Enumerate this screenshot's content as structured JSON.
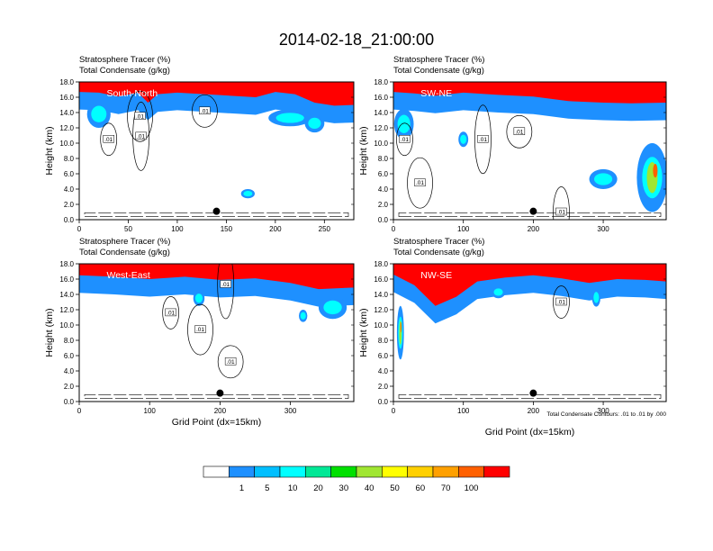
{
  "figure": {
    "title": "2014-02-18_21:00:00",
    "footnote": "Total Condensate Contours: .01 to .01 by .000",
    "colorbar": {
      "levels": [
        "1",
        "5",
        "10",
        "20",
        "30",
        "40",
        "50",
        "60",
        "70",
        "100"
      ],
      "colors": [
        "#ffffff",
        "#1e90ff",
        "#00bfff",
        "#00ffff",
        "#00e896",
        "#00e000",
        "#a0e632",
        "#ffff00",
        "#ffd000",
        "#ffa000",
        "#ff6000",
        "#ff0000"
      ]
    }
  },
  "chart_data": [
    {
      "type": "heatmap",
      "id": "p1",
      "label": "South-North",
      "line1": "Stratosphere Tracer   (%)",
      "line2": "Total Condensate   (g/kg)",
      "ylabel": "Height (km)",
      "xlabel": "",
      "xlim": [
        0,
        280
      ],
      "ylim": [
        0,
        18
      ],
      "x_ticks": [
        0,
        50,
        100,
        150,
        200,
        250
      ],
      "y_ticks": [
        "0.0",
        "2.0",
        "4.0",
        "6.0",
        "8.0",
        "10.0",
        "12.0",
        "14.0",
        "16.0",
        "18.0"
      ],
      "marker": [
        140,
        1.1
      ],
      "contour_level": ".01",
      "contour_label_positions": [
        [
          30,
          10.5
        ],
        [
          62,
          13.5
        ],
        [
          63,
          10.9
        ],
        [
          128,
          14.2
        ]
      ],
      "tracer_top_profile": [
        [
          0,
          16
        ],
        [
          20,
          15.9
        ],
        [
          40,
          15.4
        ],
        [
          60,
          15.9
        ],
        [
          70,
          14.6
        ],
        [
          80,
          15.7
        ],
        [
          100,
          15.9
        ],
        [
          140,
          15.6
        ],
        [
          180,
          15.3
        ],
        [
          200,
          16
        ],
        [
          220,
          15.7
        ],
        [
          240,
          14.6
        ],
        [
          260,
          14.2
        ],
        [
          280,
          14.3
        ]
      ],
      "tracer_blobs": [
        [
          20,
          13.8,
          12,
          1.8
        ],
        [
          215,
          13.3,
          22,
          1.1
        ],
        [
          240,
          12.6,
          10,
          1.2
        ],
        [
          172,
          3.4,
          7,
          0.6
        ]
      ]
    },
    {
      "type": "heatmap",
      "id": "p2",
      "label": "SW-NE",
      "line1": "Stratosphere Tracer   (%)",
      "line2": "Total Condensate   (g/kg)",
      "ylabel": "Height (km)",
      "xlabel": "",
      "xlim": [
        0,
        390
      ],
      "ylim": [
        0,
        18
      ],
      "x_ticks": [
        0,
        100,
        200,
        300
      ],
      "y_ticks": [
        "0.0",
        "2.0",
        "4.0",
        "6.0",
        "8.0",
        "10.0",
        "12.0",
        "14.0",
        "16.0",
        "18.0"
      ],
      "marker": [
        200,
        1.1
      ],
      "contour_level": ".01",
      "contour_label_positions": [
        [
          16,
          10.5
        ],
        [
          38,
          4.8
        ],
        [
          128,
          10.5
        ],
        [
          180,
          11.5
        ],
        [
          240,
          1.0
        ]
      ],
      "tracer_top_profile": [
        [
          0,
          16
        ],
        [
          30,
          15.8
        ],
        [
          60,
          15.5
        ],
        [
          100,
          15.9
        ],
        [
          150,
          15.6
        ],
        [
          200,
          15.4
        ],
        [
          250,
          14.8
        ],
        [
          300,
          14.6
        ],
        [
          340,
          14.5
        ],
        [
          390,
          14.6
        ]
      ],
      "tracer_blobs": [
        [
          15,
          12.5,
          14,
          2.0
        ],
        [
          370,
          5.5,
          22,
          4.5
        ],
        [
          300,
          5.3,
          20,
          1.3
        ],
        [
          100,
          10.5,
          7,
          1.0
        ]
      ]
    },
    {
      "type": "heatmap",
      "id": "p3",
      "label": "West-East",
      "line1": "Stratosphere Tracer   (%)",
      "line2": "Total Condensate   (g/kg)",
      "ylabel": "Height (km)",
      "xlabel": "Grid Point (dx=15km)",
      "xlim": [
        0,
        390
      ],
      "ylim": [
        0,
        18
      ],
      "x_ticks": [
        0,
        100,
        200,
        300
      ],
      "y_ticks": [
        "0.0",
        "2.0",
        "4.0",
        "6.0",
        "8.0",
        "10.0",
        "12.0",
        "14.0",
        "16.0",
        "18.0"
      ],
      "marker": [
        200,
        1.1
      ],
      "contour_level": ".01",
      "contour_label_positions": [
        [
          130,
          11.6
        ],
        [
          172,
          9.4
        ],
        [
          208,
          15.3
        ],
        [
          215,
          5.2
        ]
      ],
      "tracer_top_profile": [
        [
          0,
          15.8
        ],
        [
          50,
          15.6
        ],
        [
          100,
          15.3
        ],
        [
          150,
          15.6
        ],
        [
          200,
          15.2
        ],
        [
          250,
          15.4
        ],
        [
          300,
          14.8
        ],
        [
          340,
          14.0
        ],
        [
          390,
          14.2
        ]
      ],
      "tracer_blobs": [
        [
          360,
          12.3,
          20,
          1.5
        ],
        [
          318,
          11.2,
          6,
          0.8
        ],
        [
          170,
          13.5,
          8,
          1.0
        ]
      ]
    },
    {
      "type": "heatmap",
      "id": "p4",
      "label": "NW-SE",
      "line1": "Stratosphere Tracer   (%)",
      "line2": "Total Condensate   (g/kg)",
      "ylabel": "Height (km)",
      "xlabel": "Grid Point (dx=15km)",
      "xlim": [
        0,
        390
      ],
      "ylim": [
        0,
        18
      ],
      "x_ticks": [
        0,
        100,
        200,
        300
      ],
      "y_ticks": [
        "0.0",
        "2.0",
        "4.0",
        "6.0",
        "8.0",
        "10.0",
        "12.0",
        "14.0",
        "16.0",
        "18.0"
      ],
      "marker": [
        200,
        1.1
      ],
      "contour_level": ".01",
      "contour_label_positions": [
        [
          240,
          13.0
        ]
      ],
      "tracer_top_profile": [
        [
          0,
          15.9
        ],
        [
          30,
          14.5
        ],
        [
          60,
          11.8
        ],
        [
          90,
          13.0
        ],
        [
          120,
          15.0
        ],
        [
          160,
          15.5
        ],
        [
          200,
          15.8
        ],
        [
          240,
          15.4
        ],
        [
          280,
          14.8
        ],
        [
          320,
          15.3
        ],
        [
          360,
          15.2
        ],
        [
          390,
          15.0
        ]
      ],
      "tracer_blobs": [
        [
          10,
          9.0,
          5,
          3.5
        ],
        [
          290,
          13.6,
          6,
          1.2
        ],
        [
          150,
          14.3,
          10,
          0.8
        ]
      ]
    }
  ]
}
